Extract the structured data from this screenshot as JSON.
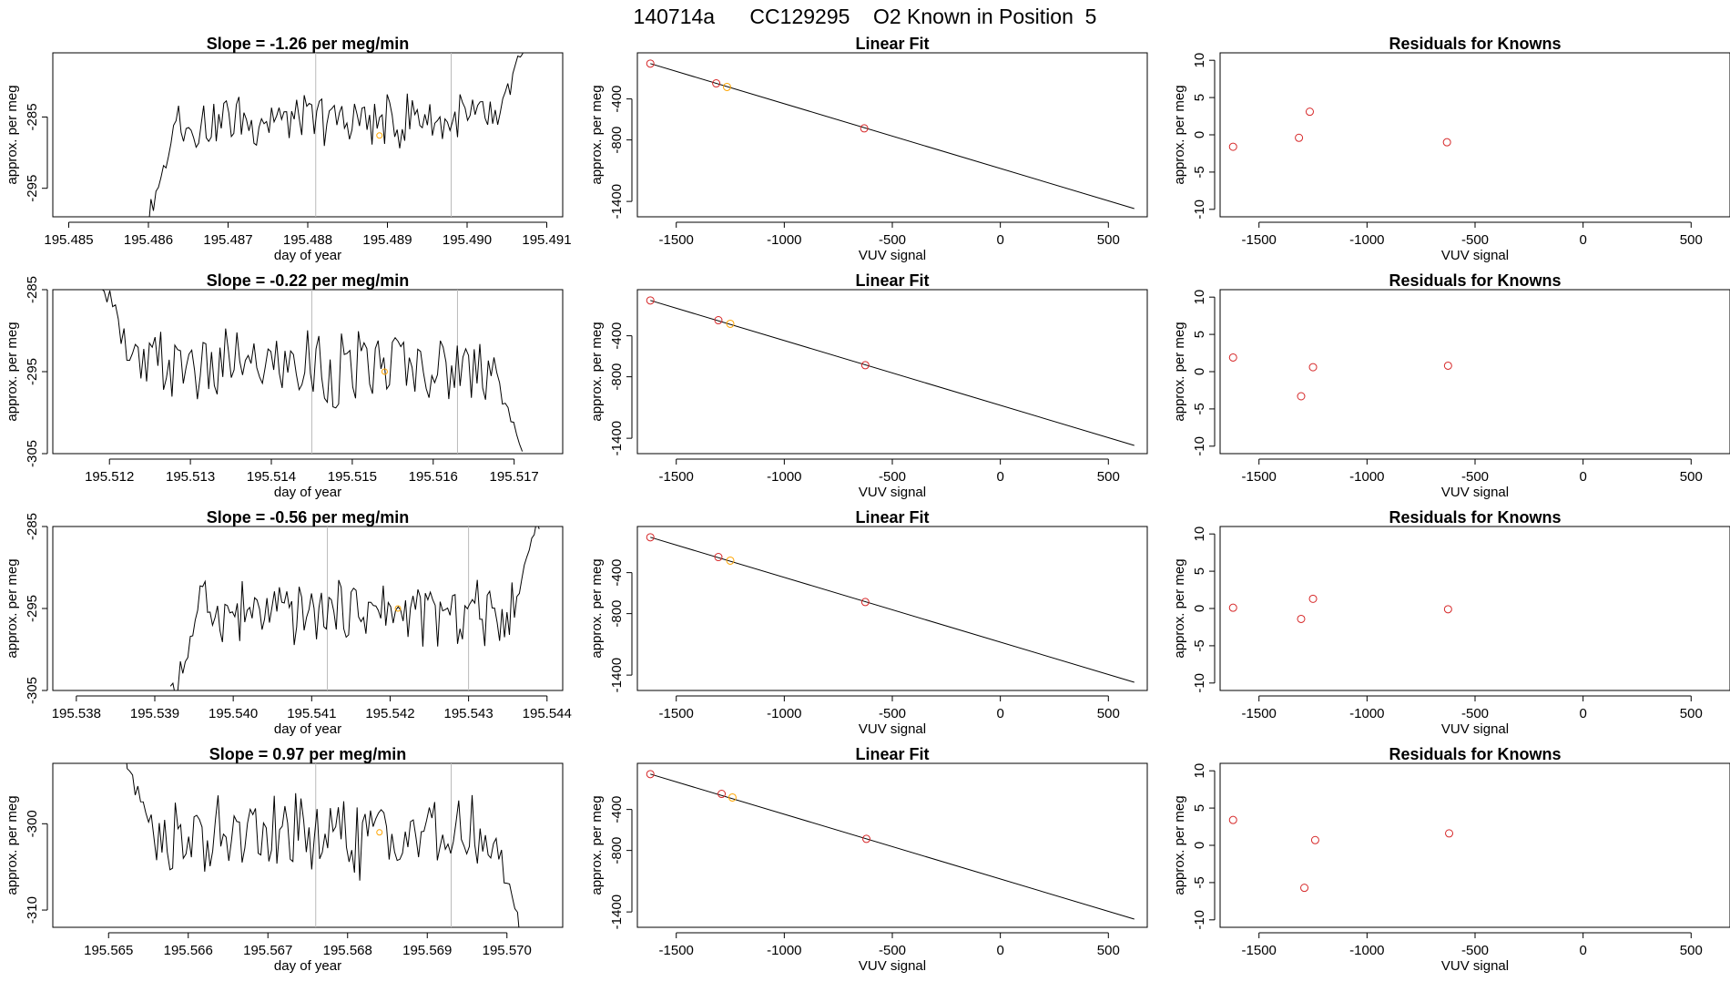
{
  "figure_title": "140714a      CC129295    O2 Known in Position  5",
  "colors": {
    "line": "#000000",
    "known_point": "#d62728",
    "reference_point": "#ffa500",
    "marker_line": "#bbbbbb",
    "frame": "#000000"
  },
  "chart_data": [
    {
      "type": "line",
      "row": 0,
      "title": "Slope =  -1.26  per meg/min",
      "xlabel": "day of year",
      "ylabel": "approx. per meg",
      "xlim": [
        195.4848,
        195.4912
      ],
      "ylim": [
        -299,
        -276
      ],
      "xticks": [
        195.485,
        195.486,
        195.487,
        195.488,
        195.489,
        195.49,
        195.491
      ],
      "xtick_labels": [
        "195.485",
        "195.486",
        "195.487",
        "195.488",
        "195.489",
        "195.490",
        "195.491"
      ],
      "yticks": [
        -295,
        -285
      ],
      "ytick_labels": [
        "-295",
        "-285"
      ],
      "marker_lines_x": [
        195.4881,
        195.4898
      ],
      "highlight_point": {
        "x": 195.4889,
        "y": -287.6
      },
      "series_x_start": 195.486,
      "series_x_end": 195.4907,
      "y_start": -299,
      "y_end": -276,
      "y_center": -285.5,
      "y_amplitude": 3.2
    },
    {
      "type": "scatter",
      "row": 0,
      "title": "Linear Fit",
      "xlabel": "VUV signal",
      "ylabel": "approx. per meg",
      "xlim": [
        -1680,
        680
      ],
      "ylim": [
        -1550,
        50
      ],
      "xticks": [
        -1500,
        -1000,
        -500,
        0,
        500
      ],
      "xtick_labels": [
        "-1500",
        "-1000",
        "-500",
        "0",
        "500"
      ],
      "yticks": [
        -400,
        -800,
        -1400
      ],
      "ytick_labels": [
        "-400",
        "-800",
        "-1400"
      ],
      "fit_line": {
        "x": [
          -1620,
          620
        ],
        "y": [
          -55,
          -1470
        ]
      },
      "points": [
        {
          "x": -1620,
          "y": -55,
          "kind": "known"
        },
        {
          "x": -1315,
          "y": -248,
          "kind": "known"
        },
        {
          "x": -1265,
          "y": -283,
          "kind": "reference"
        },
        {
          "x": -630,
          "y": -687,
          "kind": "known"
        }
      ]
    },
    {
      "type": "scatter",
      "row": 0,
      "title": "Residuals for Knowns",
      "xlabel": "VUV signal",
      "ylabel": "approx. per meg",
      "xlim": [
        -1680,
        680
      ],
      "ylim": [
        -11,
        11
      ],
      "xticks": [
        -1500,
        -1000,
        -500,
        0,
        500
      ],
      "xtick_labels": [
        "-1500",
        "-1000",
        "-500",
        "0",
        "500"
      ],
      "yticks": [
        -10,
        -5,
        0,
        5,
        10
      ],
      "ytick_labels": [
        "-10",
        "-5",
        "0",
        "5",
        "10"
      ],
      "points": [
        {
          "x": -1620,
          "y": -1.6
        },
        {
          "x": -1315,
          "y": -0.4
        },
        {
          "x": -1265,
          "y": 3.1
        },
        {
          "x": -630,
          "y": -1.0
        }
      ]
    },
    {
      "type": "line",
      "row": 1,
      "title": "Slope =  -0.22  per meg/min",
      "xlabel": "day of year",
      "ylabel": "approx. per meg",
      "xlim": [
        195.5113,
        195.5176
      ],
      "ylim": [
        -305,
        -285
      ],
      "xticks": [
        195.512,
        195.513,
        195.514,
        195.515,
        195.516,
        195.517
      ],
      "xtick_labels": [
        "195.512",
        "195.513",
        "195.514",
        "195.515",
        "195.516",
        "195.517"
      ],
      "yticks": [
        -305,
        -295,
        -285
      ],
      "ytick_labels": [
        "-305",
        "-295",
        "-285"
      ],
      "marker_lines_x": [
        195.5145,
        195.5163
      ],
      "highlight_point": {
        "x": 195.5154,
        "y": -295
      },
      "series_x_start": 195.5119,
      "series_x_end": 195.5171,
      "y_start": -284,
      "y_end": -306,
      "y_center": -294.5,
      "y_amplitude": 3.8
    },
    {
      "type": "scatter",
      "row": 1,
      "title": "Linear Fit",
      "xlabel": "VUV signal",
      "ylabel": "approx. per meg",
      "xlim": [
        -1680,
        680
      ],
      "ylim": [
        -1550,
        50
      ],
      "xticks": [
        -1500,
        -1000,
        -500,
        0,
        500
      ],
      "xtick_labels": [
        "-1500",
        "-1000",
        "-500",
        "0",
        "500"
      ],
      "yticks": [
        -400,
        -800,
        -1400
      ],
      "ytick_labels": [
        "-400",
        "-800",
        "-1400"
      ],
      "fit_line": {
        "x": [
          -1620,
          620
        ],
        "y": [
          -55,
          -1470
        ]
      },
      "points": [
        {
          "x": -1620,
          "y": -55,
          "kind": "known"
        },
        {
          "x": -1305,
          "y": -248,
          "kind": "known"
        },
        {
          "x": -1250,
          "y": -283,
          "kind": "reference"
        },
        {
          "x": -625,
          "y": -687,
          "kind": "known"
        }
      ]
    },
    {
      "type": "scatter",
      "row": 1,
      "title": "Residuals for Knowns",
      "xlabel": "VUV signal",
      "ylabel": "approx. per meg",
      "xlim": [
        -1680,
        680
      ],
      "ylim": [
        -11,
        11
      ],
      "xticks": [
        -1500,
        -1000,
        -500,
        0,
        500
      ],
      "xtick_labels": [
        "-1500",
        "-1000",
        "-500",
        "0",
        "500"
      ],
      "yticks": [
        -10,
        -5,
        0,
        5,
        10
      ],
      "ytick_labels": [
        "-10",
        "-5",
        "0",
        "5",
        "10"
      ],
      "points": [
        {
          "x": -1620,
          "y": 1.9
        },
        {
          "x": -1305,
          "y": -3.3
        },
        {
          "x": -1250,
          "y": 0.6
        },
        {
          "x": -625,
          "y": 0.8
        }
      ]
    },
    {
      "type": "line",
      "row": 2,
      "title": "Slope =  -0.56  per meg/min",
      "xlabel": "day of year",
      "ylabel": "approx. per meg",
      "xlim": [
        195.5377,
        195.5442
      ],
      "ylim": [
        -305,
        -285
      ],
      "xticks": [
        195.538,
        195.539,
        195.54,
        195.541,
        195.542,
        195.543,
        195.544
      ],
      "xtick_labels": [
        "195.538",
        "195.539",
        "195.540",
        "195.541",
        "195.542",
        "195.543",
        "195.544"
      ],
      "yticks": [
        -305,
        -295,
        -285
      ],
      "ytick_labels": [
        "-305",
        "-295",
        "-285"
      ],
      "marker_lines_x": [
        195.5412,
        195.543
      ],
      "highlight_point": {
        "x": 195.5421,
        "y": -295
      },
      "series_x_start": 195.5392,
      "series_x_end": 195.5439,
      "y_start": -306,
      "y_end": -284,
      "y_center": -295.5,
      "y_amplitude": 3.2
    },
    {
      "type": "scatter",
      "row": 2,
      "title": "Linear Fit",
      "xlabel": "VUV signal",
      "ylabel": "approx. per meg",
      "xlim": [
        -1680,
        680
      ],
      "ylim": [
        -1550,
        50
      ],
      "xticks": [
        -1500,
        -1000,
        -500,
        0,
        500
      ],
      "xtick_labels": [
        "-1500",
        "-1000",
        "-500",
        "0",
        "500"
      ],
      "yticks": [
        -400,
        -800,
        -1400
      ],
      "ytick_labels": [
        "-400",
        "-800",
        "-1400"
      ],
      "fit_line": {
        "x": [
          -1620,
          620
        ],
        "y": [
          -55,
          -1470
        ]
      },
      "points": [
        {
          "x": -1620,
          "y": -55,
          "kind": "known"
        },
        {
          "x": -1305,
          "y": -248,
          "kind": "known"
        },
        {
          "x": -1250,
          "y": -283,
          "kind": "reference"
        },
        {
          "x": -625,
          "y": -687,
          "kind": "known"
        }
      ]
    },
    {
      "type": "scatter",
      "row": 2,
      "title": "Residuals for Knowns",
      "xlabel": "VUV signal",
      "ylabel": "approx. per meg",
      "xlim": [
        -1680,
        680
      ],
      "ylim": [
        -11,
        11
      ],
      "xticks": [
        -1500,
        -1000,
        -500,
        0,
        500
      ],
      "xtick_labels": [
        "-1500",
        "-1000",
        "-500",
        "0",
        "500"
      ],
      "yticks": [
        -10,
        -5,
        0,
        5,
        10
      ],
      "ytick_labels": [
        "-10",
        "-5",
        "0",
        "5",
        "10"
      ],
      "points": [
        {
          "x": -1620,
          "y": 0.1
        },
        {
          "x": -1305,
          "y": -1.4
        },
        {
          "x": -1250,
          "y": 1.3
        },
        {
          "x": -625,
          "y": -0.1
        }
      ]
    },
    {
      "type": "line",
      "row": 3,
      "title": "Slope =  0.97  per meg/min",
      "xlabel": "day of year",
      "ylabel": "approx. per meg",
      "xlim": [
        195.5643,
        195.5707
      ],
      "ylim": [
        -312,
        -293
      ],
      "xticks": [
        195.565,
        195.566,
        195.567,
        195.568,
        195.569,
        195.57
      ],
      "xtick_labels": [
        "195.565",
        "195.566",
        "195.567",
        "195.568",
        "195.569",
        "195.570"
      ],
      "yticks": [
        -310,
        -300
      ],
      "ytick_labels": [
        "-310",
        "-300"
      ],
      "marker_lines_x": [
        195.5676,
        195.5693
      ],
      "highlight_point": {
        "x": 195.5684,
        "y": -301
      },
      "series_x_start": 195.5652,
      "series_x_end": 195.5702,
      "y_start": -292,
      "y_end": -313,
      "y_center": -301.5,
      "y_amplitude": 3.8
    },
    {
      "type": "scatter",
      "row": 3,
      "title": "Linear Fit",
      "xlabel": "VUV signal",
      "ylabel": "approx. per meg",
      "xlim": [
        -1680,
        680
      ],
      "ylim": [
        -1550,
        50
      ],
      "xticks": [
        -1500,
        -1000,
        -500,
        0,
        500
      ],
      "xtick_labels": [
        "-1500",
        "-1000",
        "-500",
        "0",
        "500"
      ],
      "yticks": [
        -400,
        -800,
        -1400
      ],
      "ytick_labels": [
        "-400",
        "-800",
        "-1400"
      ],
      "fit_line": {
        "x": [
          -1620,
          620
        ],
        "y": [
          -55,
          -1470
        ]
      },
      "points": [
        {
          "x": -1620,
          "y": -55,
          "kind": "known"
        },
        {
          "x": -1290,
          "y": -248,
          "kind": "known"
        },
        {
          "x": -1240,
          "y": -283,
          "kind": "reference"
        },
        {
          "x": -620,
          "y": -687,
          "kind": "known"
        }
      ]
    },
    {
      "type": "scatter",
      "row": 3,
      "title": "Residuals for Knowns",
      "xlabel": "VUV signal",
      "ylabel": "approx. per meg",
      "xlim": [
        -1680,
        680
      ],
      "ylim": [
        -11,
        11
      ],
      "xticks": [
        -1500,
        -1000,
        -500,
        0,
        500
      ],
      "xtick_labels": [
        "-1500",
        "-1000",
        "-500",
        "0",
        "500"
      ],
      "yticks": [
        -10,
        -5,
        0,
        5,
        10
      ],
      "ytick_labels": [
        "-10",
        "-5",
        "0",
        "5",
        "10"
      ],
      "points": [
        {
          "x": -1620,
          "y": 3.4
        },
        {
          "x": -1290,
          "y": -5.7
        },
        {
          "x": -1240,
          "y": 0.7
        },
        {
          "x": -620,
          "y": 1.6
        }
      ]
    }
  ]
}
